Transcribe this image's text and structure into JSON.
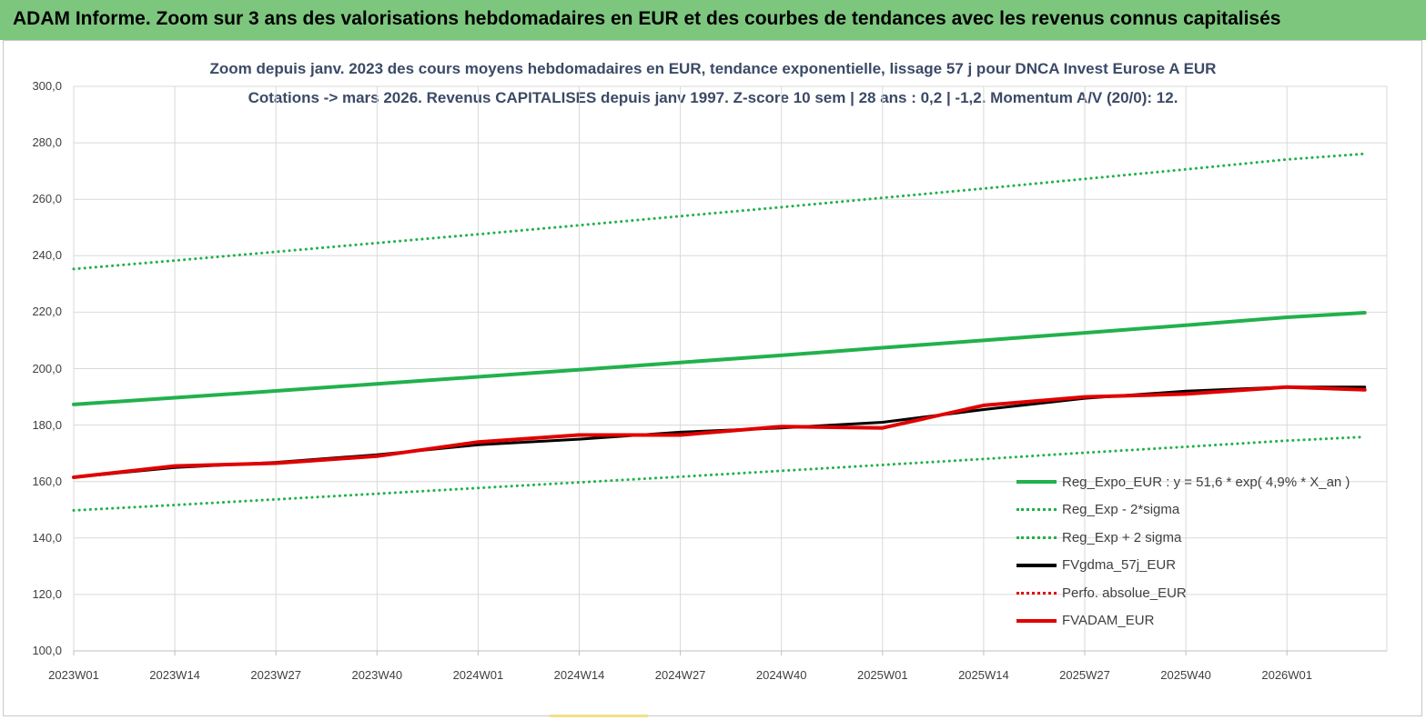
{
  "header": {
    "title": "ADAM Informe. Zoom sur 3 ans des valorisations hebdomadaires en EUR et des courbes de tendances avec les revenus connus capitalisés"
  },
  "chart_data": {
    "type": "line",
    "title_line1": "Zoom depuis janv. 2023 des cours moyens hebdomadaires en EUR, tendance exponentielle, lissage 57 j pour DNCA Invest Eurose A EUR",
    "title_line2": "Cotations -> mars 2026. Revenus CAPITALISES depuis janv 1997. Z-score 10 sem | 28 ans : 0,2 | -1,2. Momentum A/V (20/0): 12.",
    "ylim": [
      100,
      300
    ],
    "yticks": [
      "100,0",
      "120,0",
      "140,0",
      "160,0",
      "180,0",
      "200,0",
      "220,0",
      "240,0",
      "260,0",
      "280,0",
      "300,0"
    ],
    "xticks": [
      "2023W01",
      "2023W14",
      "2023W27",
      "2023W40",
      "2024W01",
      "2024W14",
      "2024W27",
      "2024W40",
      "2025W01",
      "2025W14",
      "2025W27",
      "2025W40",
      "2026W01"
    ],
    "x_points": [
      "2023W01",
      "2023W14",
      "2023W27",
      "2023W40",
      "2024W01",
      "2024W14",
      "2024W27",
      "2024W40",
      "2025W01",
      "2025W14",
      "2025W27",
      "2025W40",
      "2026W01",
      "2026W11"
    ],
    "grid": true,
    "legend_position": "bottom-right",
    "series": [
      {
        "name": "Reg_Expo_EUR : y = 51,6 * exp( 4,9% *  X_an )",
        "color": "#22b14c",
        "style": "solid",
        "values": [
          187.3,
          189.7,
          192.1,
          194.6,
          197.1,
          199.6,
          202.2,
          204.7,
          207.4,
          210.0,
          212.7,
          215.4,
          218.2,
          219.8
        ]
      },
      {
        "name": "Reg_Exp - 2*sigma",
        "color": "#22b14c",
        "style": "dotted",
        "values": [
          149.8,
          151.7,
          153.7,
          155.7,
          157.7,
          159.7,
          161.7,
          163.8,
          165.9,
          168.0,
          170.2,
          172.3,
          174.5,
          175.8
        ]
      },
      {
        "name": "Reg_Exp + 2 sigma",
        "color": "#22b14c",
        "style": "dotted",
        "values": [
          235.3,
          238.3,
          241.4,
          244.5,
          247.6,
          250.8,
          254.0,
          257.2,
          260.5,
          263.8,
          267.2,
          270.6,
          274.1,
          276.1
        ]
      },
      {
        "name": "FVgdma_57j_EUR",
        "color": "#000000",
        "style": "solid",
        "values": [
          161.5,
          165.0,
          166.8,
          169.5,
          173.0,
          175.0,
          177.5,
          179.0,
          181.0,
          185.5,
          189.5,
          192.0,
          193.5,
          193.5
        ]
      },
      {
        "name": "Perfo. absolue_EUR",
        "color": "#e00000",
        "style": "dotted",
        "values": []
      },
      {
        "name": "FVADAM_EUR",
        "color": "#e00000",
        "style": "solid",
        "values": [
          161.5,
          165.5,
          166.5,
          169.0,
          174.0,
          176.5,
          176.5,
          179.5,
          179.0,
          187.0,
          190.0,
          191.0,
          193.5,
          192.5
        ]
      }
    ]
  }
}
